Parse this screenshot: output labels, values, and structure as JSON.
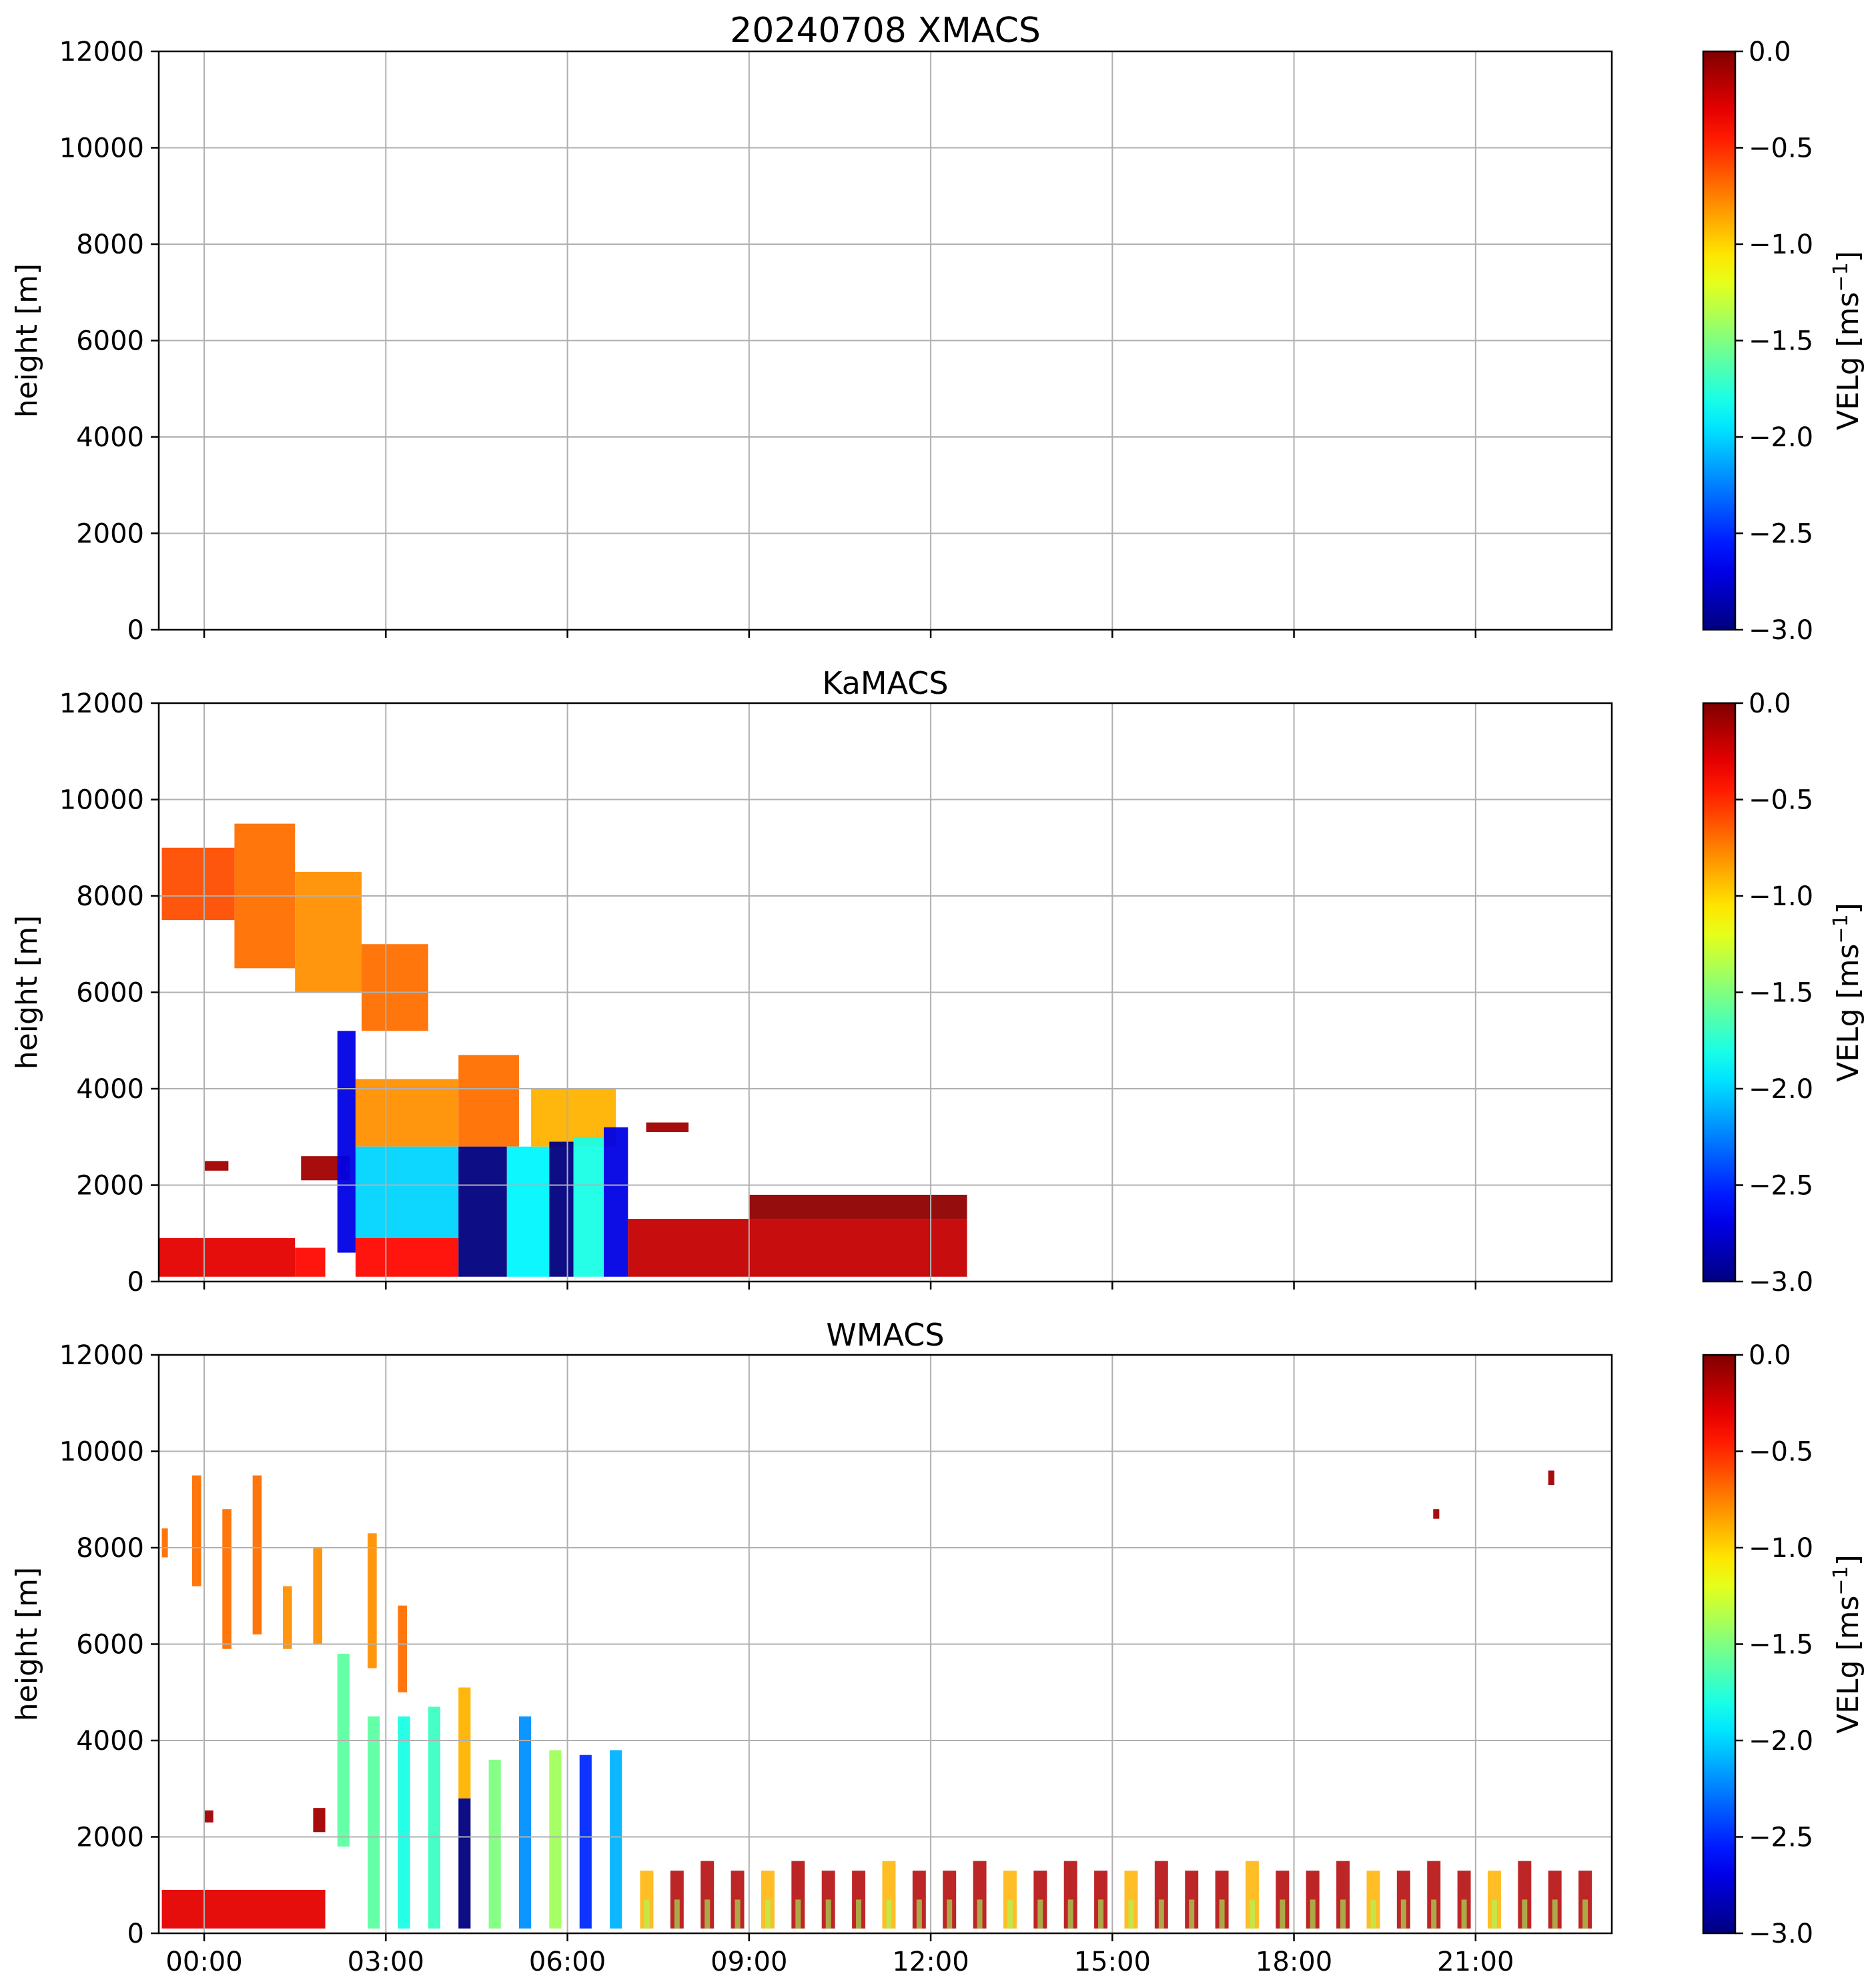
{
  "chart_data": [
    {
      "type": "heatmap",
      "title": "20240708 XMACS",
      "xlabel": "",
      "ylabel": "height [m]",
      "xlim_hours": [
        -0.75,
        23.25
      ],
      "ylim": [
        0,
        12000
      ],
      "yticks": [
        0,
        2000,
        4000,
        6000,
        8000,
        10000,
        12000
      ],
      "xticks_hours": [
        0,
        3,
        6,
        9,
        12,
        15,
        18,
        21
      ],
      "xtick_labels": [],
      "colorbar": {
        "label": "VELg [ms",
        "exp": "−1",
        "close": "]",
        "range": [
          -3.0,
          0.0
        ],
        "ticks": [
          "0.0",
          "−0.5",
          "−1.0",
          "−1.5",
          "−2.0",
          "−2.5",
          "−3.0"
        ]
      },
      "grid": true,
      "regions": []
    },
    {
      "type": "heatmap",
      "title": "KaMACS",
      "xlabel": "",
      "ylabel": "height [m]",
      "xlim_hours": [
        -0.75,
        23.25
      ],
      "ylim": [
        0,
        12000
      ],
      "yticks": [
        0,
        2000,
        4000,
        6000,
        8000,
        10000,
        12000
      ],
      "xticks_hours": [
        0,
        3,
        6,
        9,
        12,
        15,
        18,
        21
      ],
      "xtick_labels": [],
      "colorbar": {
        "label": "VELg [ms",
        "exp": "−1",
        "close": "]",
        "range": [
          -3.0,
          0.0
        ],
        "ticks": [
          "0.0",
          "−0.5",
          "−1.0",
          "−1.5",
          "−2.0",
          "−2.5",
          "−3.0"
        ]
      },
      "grid": true,
      "regions": [
        {
          "t0": -0.75,
          "t1": 1.5,
          "h0": 100,
          "h1": 900,
          "v": -0.3
        },
        {
          "t0": 1.5,
          "t1": 2.0,
          "h0": 100,
          "h1": 700,
          "v": -0.4
        },
        {
          "t0": -0.7,
          "t1": 0.5,
          "h0": 7500,
          "h1": 9000,
          "v": -0.6
        },
        {
          "t0": 0.5,
          "t1": 1.5,
          "h0": 6500,
          "h1": 9500,
          "v": -0.7
        },
        {
          "t0": 1.5,
          "t1": 2.6,
          "h0": 6000,
          "h1": 8500,
          "v": -0.8
        },
        {
          "t0": 2.6,
          "t1": 3.7,
          "h0": 5200,
          "h1": 7000,
          "v": -0.7
        },
        {
          "t0": 0.0,
          "t1": 0.4,
          "h0": 2300,
          "h1": 2500,
          "v": -0.1
        },
        {
          "t0": 1.6,
          "t1": 2.4,
          "h0": 2100,
          "h1": 2600,
          "v": -0.1
        },
        {
          "t0": 2.2,
          "t1": 2.5,
          "h0": 600,
          "h1": 5200,
          "v": -2.7
        },
        {
          "t0": 2.5,
          "t1": 4.2,
          "h0": 2800,
          "h1": 4200,
          "v": -0.8
        },
        {
          "t0": 4.2,
          "t1": 5.2,
          "h0": 2800,
          "h1": 4700,
          "v": -0.7
        },
        {
          "t0": 2.5,
          "t1": 4.2,
          "h0": 900,
          "h1": 2800,
          "v": -2.0
        },
        {
          "t0": 2.5,
          "t1": 4.2,
          "h0": 100,
          "h1": 900,
          "v": -0.4
        },
        {
          "t0": 4.2,
          "t1": 5.0,
          "h0": 100,
          "h1": 2800,
          "v": -3.0
        },
        {
          "t0": 5.0,
          "t1": 5.7,
          "h0": 100,
          "h1": 2800,
          "v": -1.9
        },
        {
          "t0": 5.4,
          "t1": 6.8,
          "h0": 2800,
          "h1": 4000,
          "v": -0.9
        },
        {
          "t0": 5.7,
          "t1": 6.1,
          "h0": 100,
          "h1": 2900,
          "v": -3.0
        },
        {
          "t0": 6.1,
          "t1": 6.6,
          "h0": 100,
          "h1": 3000,
          "v": -1.8
        },
        {
          "t0": 6.6,
          "t1": 7.0,
          "h0": 100,
          "h1": 3200,
          "v": -2.7
        },
        {
          "t0": 7.0,
          "t1": 12.6,
          "h0": 100,
          "h1": 1300,
          "v": -0.2
        },
        {
          "t0": 9.0,
          "t1": 12.6,
          "h0": 1300,
          "h1": 1800,
          "v": -0.05
        },
        {
          "t0": 7.3,
          "t1": 8.0,
          "h0": 3100,
          "h1": 3300,
          "v": -0.1
        }
      ]
    },
    {
      "type": "heatmap",
      "title": "WMACS",
      "xlabel": "",
      "ylabel": "height [m]",
      "xlim_hours": [
        -0.75,
        23.25
      ],
      "ylim": [
        0,
        12000
      ],
      "yticks": [
        0,
        2000,
        4000,
        6000,
        8000,
        10000,
        12000
      ],
      "xticks_hours": [
        0,
        3,
        6,
        9,
        12,
        15,
        18,
        21
      ],
      "xtick_labels": [
        "00:00",
        "03:00",
        "06:00",
        "09:00",
        "12:00",
        "15:00",
        "18:00",
        "21:00"
      ],
      "colorbar": {
        "label": "VELg [ms",
        "exp": "−1",
        "close": "]",
        "range": [
          -3.0,
          0.0
        ],
        "ticks": [
          "0.0",
          "−0.5",
          "−1.0",
          "−1.5",
          "−2.0",
          "−2.5",
          "−3.0"
        ]
      },
      "grid": true,
      "burst_times_hours": [
        -0.7,
        -0.2,
        0.3,
        0.8,
        1.3,
        1.8,
        2.2,
        2.7,
        3.2,
        3.7,
        4.2,
        4.7,
        5.2,
        5.7,
        6.2,
        6.7,
        7.2,
        7.7,
        8.2,
        8.7,
        9.2,
        9.7,
        10.2,
        10.7,
        11.2,
        11.7,
        12.2,
        12.7,
        13.2,
        13.7,
        14.2,
        14.7,
        15.2,
        15.7,
        16.2,
        16.7,
        17.2,
        17.7,
        18.2,
        18.7,
        19.2,
        19.7,
        20.2,
        20.7,
        21.2,
        21.7,
        22.2,
        22.7
      ],
      "burst_width_hours": 0.22,
      "regions": [
        {
          "t0": -0.7,
          "t1": 2.0,
          "h0": 100,
          "h1": 900,
          "v": -0.3
        },
        {
          "t0": -0.7,
          "t1": -0.6,
          "h0": 7800,
          "h1": 8400,
          "v": -0.7
        },
        {
          "t0": -0.2,
          "t1": -0.05,
          "h0": 7200,
          "h1": 9500,
          "v": -0.7
        },
        {
          "t0": 0.3,
          "t1": 0.45,
          "h0": 5900,
          "h1": 8800,
          "v": -0.7
        },
        {
          "t0": 0.8,
          "t1": 0.95,
          "h0": 6200,
          "h1": 9500,
          "v": -0.7
        },
        {
          "t0": 1.3,
          "t1": 1.45,
          "h0": 5900,
          "h1": 7200,
          "v": -0.8
        },
        {
          "t0": 1.8,
          "t1": 1.95,
          "h0": 6000,
          "h1": 8000,
          "v": -0.8
        },
        {
          "t0": 2.7,
          "t1": 2.85,
          "h0": 5500,
          "h1": 8300,
          "v": -0.8
        },
        {
          "t0": 3.2,
          "t1": 3.35,
          "h0": 5000,
          "h1": 6800,
          "v": -0.7
        },
        {
          "t0": 2.2,
          "t1": 2.4,
          "h0": 1800,
          "h1": 5800,
          "v": -1.6
        },
        {
          "t0": 2.7,
          "t1": 2.9,
          "h0": 100,
          "h1": 4500,
          "v": -1.6
        },
        {
          "t0": 3.2,
          "t1": 3.4,
          "h0": 100,
          "h1": 4500,
          "v": -1.8
        },
        {
          "t0": 3.7,
          "t1": 3.9,
          "h0": 100,
          "h1": 4700,
          "v": -1.7
        },
        {
          "t0": 4.2,
          "t1": 4.4,
          "h0": 100,
          "h1": 2800,
          "v": -3.0
        },
        {
          "t0": 4.2,
          "t1": 4.4,
          "h0": 2800,
          "h1": 5100,
          "v": -0.9
        },
        {
          "t0": 4.7,
          "t1": 4.9,
          "h0": 100,
          "h1": 3600,
          "v": -1.5
        },
        {
          "t0": 5.2,
          "t1": 5.4,
          "h0": 100,
          "h1": 4500,
          "v": -2.2
        },
        {
          "t0": 5.7,
          "t1": 5.9,
          "h0": 100,
          "h1": 3800,
          "v": -1.4
        },
        {
          "t0": 6.2,
          "t1": 6.4,
          "h0": 100,
          "h1": 3700,
          "v": -2.5
        },
        {
          "t0": 6.7,
          "t1": 6.9,
          "h0": 100,
          "h1": 3800,
          "v": -2.1
        },
        {
          "t0": 0.0,
          "t1": 0.15,
          "h0": 2300,
          "h1": 2550,
          "v": -0.1
        },
        {
          "t0": 1.8,
          "t1": 2.0,
          "h0": 2100,
          "h1": 2600,
          "v": -0.1
        },
        {
          "t0": 20.3,
          "t1": 20.4,
          "h0": 8600,
          "h1": 8800,
          "v": -0.1
        },
        {
          "t0": 22.2,
          "t1": 22.3,
          "h0": 9300,
          "h1": 9600,
          "v": -0.1
        }
      ]
    }
  ]
}
